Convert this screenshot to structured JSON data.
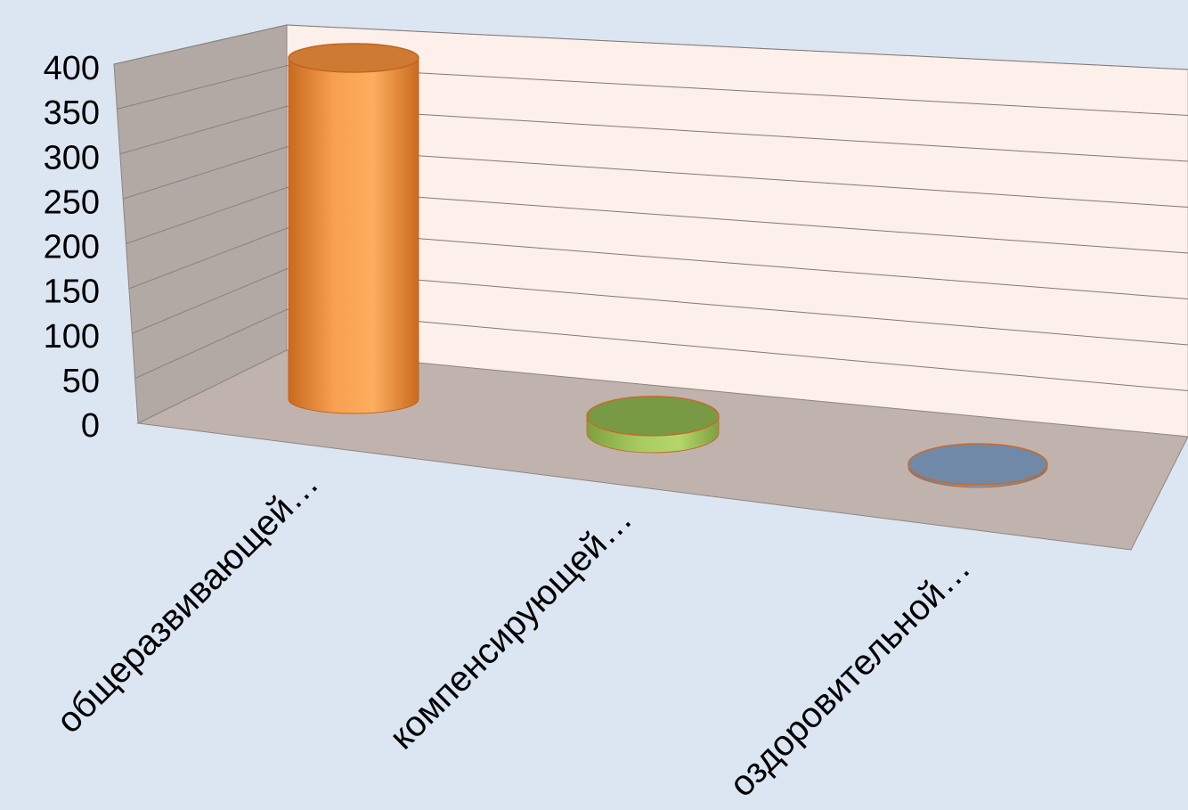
{
  "chart_data": {
    "type": "bar",
    "style": "3d-cylinder",
    "categories": [
      "общеразвивающей…",
      "компенсирующей…",
      "оздоровительной…"
    ],
    "values": [
      400,
      20,
      3
    ],
    "series_colors": [
      "#f79646",
      "#9bbb59",
      "#4f81bd"
    ],
    "ylim": [
      0,
      400
    ],
    "yticks": [
      "0",
      "50",
      "100",
      "150",
      "200",
      "250",
      "300",
      "350",
      "400"
    ],
    "grid": true,
    "legend": "none",
    "title": "",
    "xlabel": "",
    "ylabel": ""
  }
}
